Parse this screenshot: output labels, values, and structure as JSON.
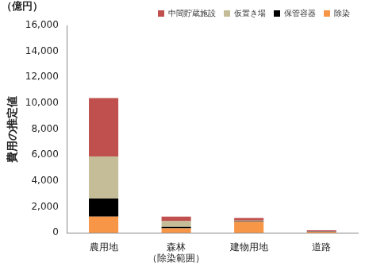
{
  "chart_data": {
    "type": "bar",
    "stacked": true,
    "y_unit": "（億円）",
    "y_label": "費用の推定値",
    "categories": [
      "農用地",
      [
        "森林",
        "（除染範囲）"
      ],
      "建物用地",
      "道路"
    ],
    "series": [
      {
        "name": "除染",
        "color": "#f79646",
        "values": [
          1250,
          350,
          850,
          80
        ]
      },
      {
        "name": "保管容器",
        "color": "#000000",
        "values": [
          1400,
          100,
          50,
          10
        ]
      },
      {
        "name": "仮置き場",
        "color": "#c4bd97",
        "values": [
          3250,
          450,
          50,
          20
        ]
      },
      {
        "name": "中間貯蔵施設",
        "color": "#c0504d",
        "values": [
          4500,
          350,
          200,
          90
        ]
      }
    ],
    "ylim": [
      0,
      16000
    ],
    "yticks": [
      0,
      {
        "value": 2000,
        "label": "2,000"
      },
      {
        "value": 4000,
        "label": "4,000"
      },
      {
        "value": 6000,
        "label": "6,000"
      },
      {
        "value": 8000,
        "label": "8,000"
      },
      {
        "value": 10000,
        "label": "10,000"
      },
      {
        "value": 12000,
        "label": "12,000"
      },
      {
        "value": 14000,
        "label": "14,000"
      },
      {
        "value": 16000,
        "label": "16,000"
      }
    ],
    "grid": false,
    "legend": "top"
  }
}
